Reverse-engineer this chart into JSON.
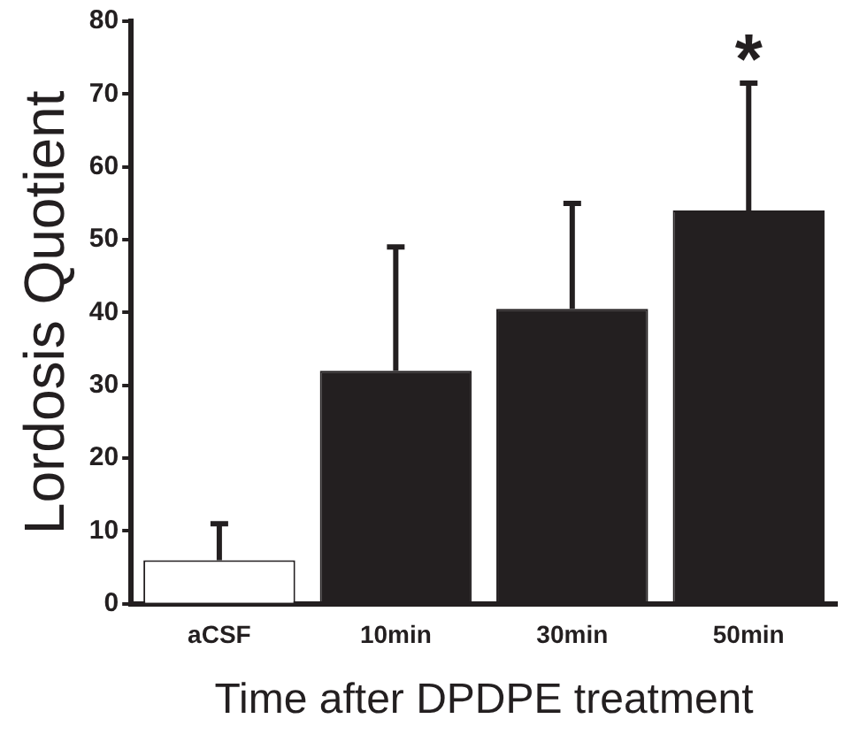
{
  "chart_data": {
    "type": "bar",
    "xlabel": "Time after DPDPE treatment",
    "ylabel": "Lordosis Quotient",
    "categories": [
      "aCSF",
      "10min",
      "30min",
      "50min"
    ],
    "values": [
      6,
      32,
      40.5,
      54
    ],
    "colors": [
      "#ffffff",
      "#231f20",
      "#231f20",
      "#231f20"
    ],
    "errors": [
      [
        6,
        11
      ],
      [
        32,
        49
      ],
      [
        40.5,
        55
      ],
      [
        54,
        71.5
      ]
    ],
    "ylim": [
      0,
      80
    ],
    "yticks": [
      0,
      10,
      20,
      30,
      40,
      50,
      60,
      70,
      80
    ],
    "grid": false,
    "annotations": [
      "*"
    ]
  }
}
